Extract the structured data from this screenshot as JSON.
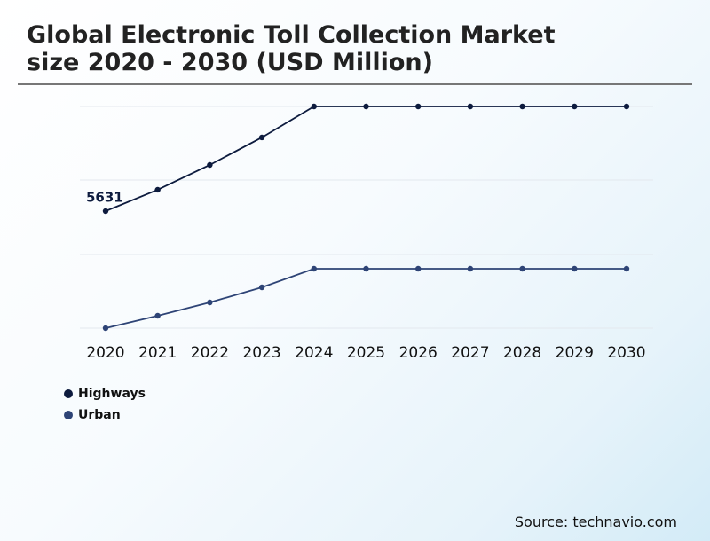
{
  "chart_data": {
    "type": "line",
    "title": "Global Electronic Toll Collection Market size 2020 - 2030 (USD Million)",
    "categories": [
      "2020",
      "2021",
      "2022",
      "2023",
      "2024",
      "2025",
      "2026",
      "2027",
      "2028",
      "2029",
      "2030"
    ],
    "series": [
      {
        "name": "Highways",
        "color": "#0d1b3e",
        "values": [
          5631,
          6521,
          7558,
          8707,
          10003,
          10003,
          10003,
          10003,
          10003,
          10003,
          10003
        ],
        "value_labels": [
          "5631",
          null,
          null,
          null,
          null,
          null,
          null,
          null,
          null,
          null,
          null
        ]
      },
      {
        "name": "Urban",
        "color": "#2e4476",
        "values": [
          741,
          1260,
          1815,
          2445,
          3223,
          3223,
          3223,
          3223,
          3223,
          3223,
          3223
        ]
      }
    ],
    "ylim": [
      0,
      10040
    ],
    "legend": "bottom-left",
    "source": "Source: technavio.com"
  }
}
